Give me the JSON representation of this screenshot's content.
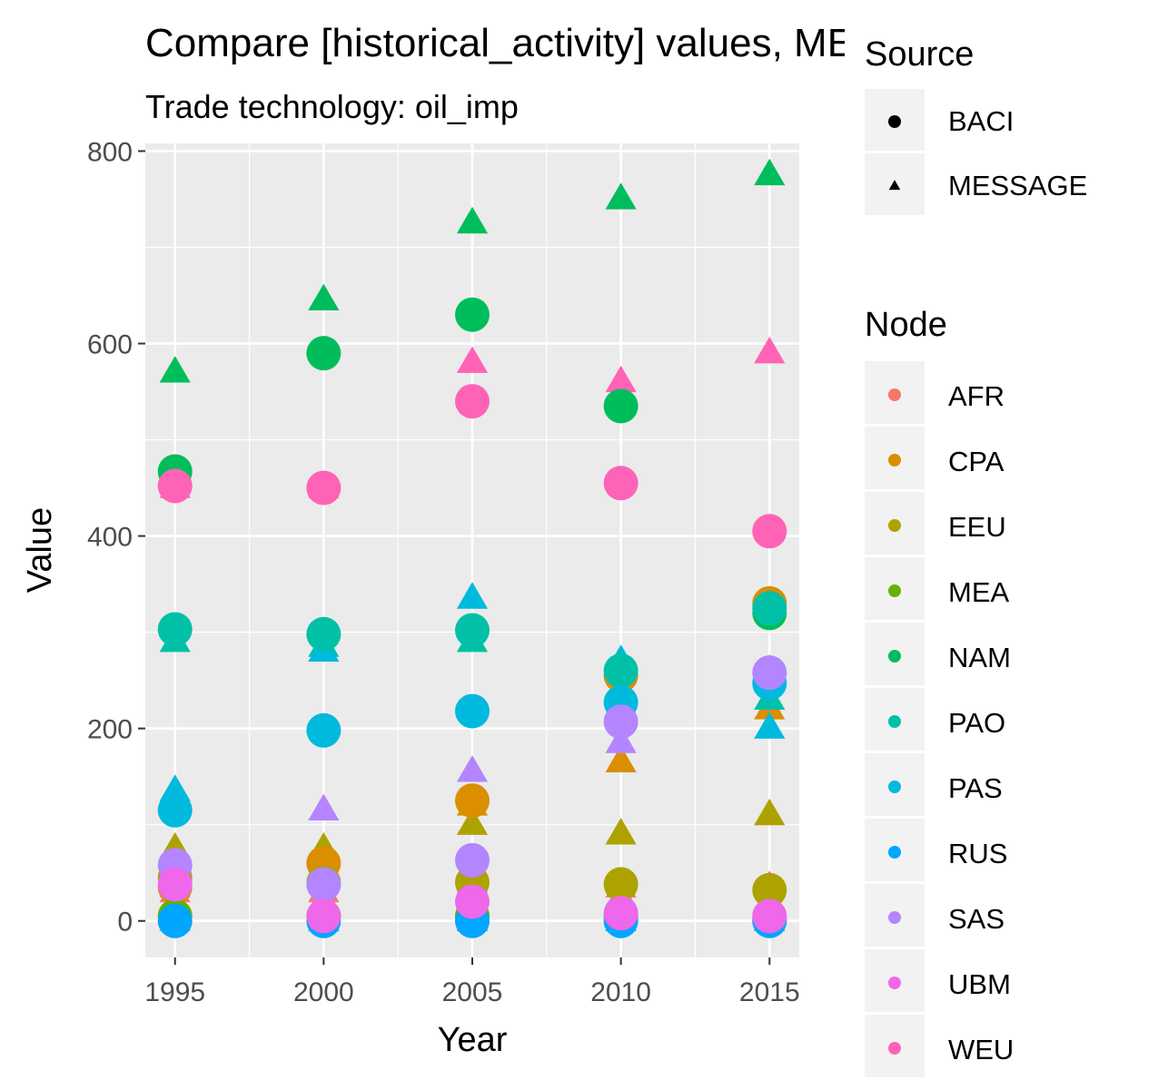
{
  "chart_data": {
    "type": "scatter",
    "title": "Compare [historical_activity] values, MESSAGE",
    "subtitle": "Trade technology: oil_imp",
    "xlabel": "Year",
    "ylabel": "Value",
    "x_ticks": [
      "1995",
      "2000",
      "2005",
      "2010",
      "2015"
    ],
    "y_ticks": [
      "0",
      "200",
      "400",
      "600",
      "800"
    ],
    "xlim": [
      1994,
      2016
    ],
    "ylim": [
      -38,
      808
    ],
    "grid": true,
    "legend_placement": "right",
    "source_legend": {
      "title": "Source",
      "entries": [
        {
          "label": "BACI",
          "shape": "circle"
        },
        {
          "label": "MESSAGE",
          "shape": "triangle"
        }
      ]
    },
    "node_legend": {
      "title": "Node",
      "entries": [
        {
          "label": "AFR",
          "color": "#F8766D"
        },
        {
          "label": "CPA",
          "color": "#DB8E00"
        },
        {
          "label": "EEU",
          "color": "#AEA200"
        },
        {
          "label": "MEA",
          "color": "#64B200"
        },
        {
          "label": "NAM",
          "color": "#00BD5C"
        },
        {
          "label": "PAO",
          "color": "#00C1A7"
        },
        {
          "label": "PAS",
          "color": "#00BADE"
        },
        {
          "label": "RUS",
          "color": "#00A6FF"
        },
        {
          "label": "SAS",
          "color": "#B385FF"
        },
        {
          "label": "UBM",
          "color": "#EF67EB"
        },
        {
          "label": "WEU",
          "color": "#FF63B6"
        }
      ]
    },
    "series": [
      {
        "node": "AFR",
        "source": "BACI",
        "x": [
          1995,
          2000,
          2005,
          2010,
          2015
        ],
        "y": [
          5,
          5,
          5,
          5,
          5
        ]
      },
      {
        "node": "AFR",
        "source": "MESSAGE",
        "x": [
          1995,
          2000,
          2005,
          2010,
          2015
        ],
        "y": [
          30,
          30,
          40,
          35,
          35
        ]
      },
      {
        "node": "CPA",
        "source": "BACI",
        "x": [
          1995,
          2000,
          2005,
          2010,
          2015
        ],
        "y": [
          35,
          60,
          125,
          255,
          330
        ]
      },
      {
        "node": "CPA",
        "source": "MESSAGE",
        "x": [
          1995,
          2000,
          2005,
          2010,
          2015
        ],
        "y": [
          40,
          45,
          120,
          165,
          220
        ]
      },
      {
        "node": "EEU",
        "source": "BACI",
        "x": [
          1995,
          2000,
          2005,
          2010,
          2015
        ],
        "y": [
          45,
          40,
          40,
          38,
          32
        ]
      },
      {
        "node": "EEU",
        "source": "MESSAGE",
        "x": [
          1995,
          2000,
          2005,
          2010,
          2015
        ],
        "y": [
          75,
          75,
          100,
          90,
          110
        ]
      },
      {
        "node": "MEA",
        "source": "BACI",
        "x": [
          1995,
          2000,
          2005,
          2010,
          2015
        ],
        "y": [
          5,
          5,
          5,
          5,
          2
        ]
      },
      {
        "node": "MEA",
        "source": "MESSAGE",
        "x": [
          1995,
          2000,
          2005,
          2010,
          2015
        ],
        "y": [
          0,
          0,
          0,
          0,
          0
        ]
      },
      {
        "node": "NAM",
        "source": "BACI",
        "x": [
          1995,
          2000,
          2005,
          2010,
          2015
        ],
        "y": [
          467,
          590,
          630,
          535,
          320
        ]
      },
      {
        "node": "NAM",
        "source": "MESSAGE",
        "x": [
          1995,
          2000,
          2005,
          2010,
          2015
        ],
        "y": [
          570,
          645,
          725,
          750,
          775
        ]
      },
      {
        "node": "PAO",
        "source": "BACI",
        "x": [
          1995,
          2000,
          2005,
          2010,
          2015
        ],
        "y": [
          303,
          298,
          302,
          260,
          325
        ]
      },
      {
        "node": "PAO",
        "source": "MESSAGE",
        "x": [
          1995,
          2000,
          2005,
          2010,
          2015
        ],
        "y": [
          290,
          285,
          290,
          210,
          230
        ]
      },
      {
        "node": "PAS",
        "source": "BACI",
        "x": [
          1995,
          2000,
          2005,
          2010,
          2015
        ],
        "y": [
          115,
          198,
          218,
          227,
          247
        ]
      },
      {
        "node": "PAS",
        "source": "MESSAGE",
        "x": [
          1995,
          2000,
          2005,
          2010,
          2015
        ],
        "y": [
          135,
          280,
          335,
          270,
          200
        ]
      },
      {
        "node": "RUS",
        "source": "BACI",
        "x": [
          1995,
          2000,
          2005,
          2010,
          2015
        ],
        "y": [
          0,
          0,
          0,
          0,
          0
        ]
      },
      {
        "node": "RUS",
        "source": "MESSAGE",
        "x": [
          1995,
          2000,
          2005,
          2010,
          2015
        ],
        "y": [
          15,
          0,
          0,
          0,
          0
        ]
      },
      {
        "node": "SAS",
        "source": "BACI",
        "x": [
          1995,
          2000,
          2005,
          2010,
          2015
        ],
        "y": [
          58,
          38,
          63,
          207,
          258
        ]
      },
      {
        "node": "SAS",
        "source": "MESSAGE",
        "x": [
          1995,
          2000,
          2005,
          2010,
          2015
        ],
        "y": [
          55,
          115,
          155,
          185,
          260
        ]
      },
      {
        "node": "UBM",
        "source": "BACI",
        "x": [
          1995,
          2000,
          2005,
          2010,
          2015
        ],
        "y": [
          38,
          5,
          20,
          8,
          5
        ]
      },
      {
        "node": "UBM",
        "source": "MESSAGE",
        "x": [
          1995,
          2000,
          2005,
          2010,
          2015
        ],
        "y": [
          35,
          22,
          40,
          25,
          35
        ]
      },
      {
        "node": "WEU",
        "source": "BACI",
        "x": [
          1995,
          2000,
          2005,
          2010,
          2015
        ],
        "y": [
          452,
          450,
          540,
          455,
          405
        ]
      },
      {
        "node": "WEU",
        "source": "MESSAGE",
        "x": [
          1995,
          2000,
          2005,
          2010,
          2015
        ],
        "y": [
          450,
          450,
          580,
          560,
          590
        ]
      }
    ]
  }
}
